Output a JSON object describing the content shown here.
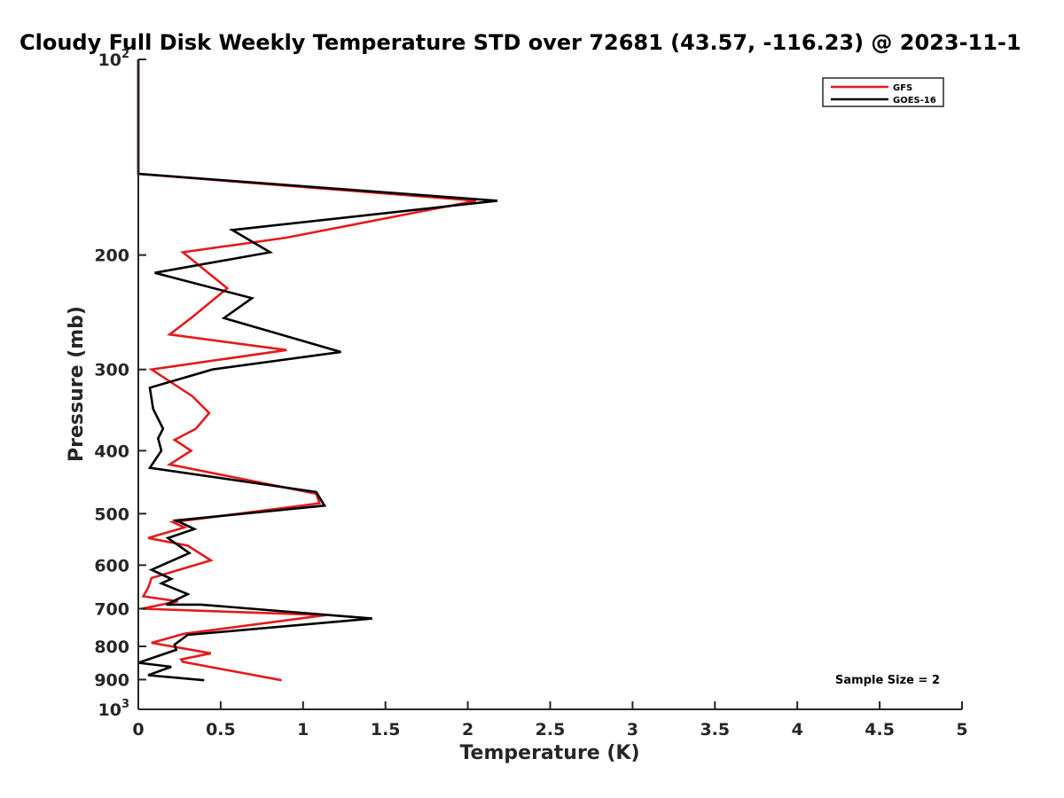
{
  "chart_data": {
    "type": "line",
    "title": "Cloudy Full Disk Weekly Temperature STD over 72681 (43.57, -116.23) @ 2023-11-1",
    "xlabel": "Temperature (K)",
    "ylabel": "Pressure (mb)",
    "xlim": [
      0,
      5
    ],
    "ylim": [
      100,
      1000
    ],
    "y_scale": "log",
    "y_reversed": true,
    "x_ticks": [
      "0",
      "0.5",
      "1",
      "1.5",
      "2",
      "2.5",
      "3",
      "3.5",
      "4",
      "4.5",
      "5"
    ],
    "y_ticks": [
      {
        "value": 100,
        "base": "10",
        "exp": "2"
      },
      {
        "value": 200,
        "label": "200"
      },
      {
        "value": 300,
        "label": "300"
      },
      {
        "value": 400,
        "label": "400"
      },
      {
        "value": 500,
        "label": "500"
      },
      {
        "value": 600,
        "label": "600"
      },
      {
        "value": 700,
        "label": "700"
      },
      {
        "value": 800,
        "label": "800"
      },
      {
        "value": 900,
        "label": "900"
      },
      {
        "value": 1000,
        "base": "10",
        "exp": "3"
      }
    ],
    "legend": "top-right",
    "grid": false,
    "annotation": "Sample Size = 2",
    "series": [
      {
        "name": "GFS",
        "color": "#e41a1c",
        "points": [
          [
            0.0,
            100
          ],
          [
            0.0,
            150
          ],
          [
            2.05,
            165
          ],
          [
            0.9,
            188
          ],
          [
            0.27,
            198
          ],
          [
            0.54,
            225
          ],
          [
            0.32,
            250
          ],
          [
            0.19,
            265
          ],
          [
            0.9,
            280
          ],
          [
            0.08,
            300
          ],
          [
            0.33,
            330
          ],
          [
            0.43,
            350
          ],
          [
            0.35,
            370
          ],
          [
            0.22,
            385
          ],
          [
            0.32,
            400
          ],
          [
            0.19,
            420
          ],
          [
            1.08,
            466
          ],
          [
            1.1,
            482
          ],
          [
            0.21,
            515
          ],
          [
            0.28,
            525
          ],
          [
            0.06,
            545
          ],
          [
            0.3,
            560
          ],
          [
            0.44,
            590
          ],
          [
            0.08,
            628
          ],
          [
            0.06,
            650
          ],
          [
            0.03,
            670
          ],
          [
            0.24,
            682
          ],
          [
            0.02,
            700
          ],
          [
            1.14,
            716
          ],
          [
            0.28,
            765
          ],
          [
            0.08,
            790
          ],
          [
            0.44,
            820
          ],
          [
            0.26,
            838
          ],
          [
            0.27,
            845
          ],
          [
            0.87,
            902
          ]
        ]
      },
      {
        "name": "GOES-16",
        "color": "#000000",
        "points": [
          [
            0.0,
            100
          ],
          [
            0.0,
            150
          ],
          [
            2.18,
            165
          ],
          [
            0.57,
            183
          ],
          [
            0.8,
            198
          ],
          [
            0.1,
            213
          ],
          [
            0.69,
            233
          ],
          [
            0.52,
            250
          ],
          [
            1.23,
            282
          ],
          [
            0.45,
            300
          ],
          [
            0.07,
            320
          ],
          [
            0.09,
            345
          ],
          [
            0.15,
            370
          ],
          [
            0.12,
            383
          ],
          [
            0.14,
            400
          ],
          [
            0.07,
            425
          ],
          [
            1.08,
            463
          ],
          [
            1.13,
            486
          ],
          [
            0.23,
            512
          ],
          [
            0.34,
            528
          ],
          [
            0.18,
            545
          ],
          [
            0.31,
            575
          ],
          [
            0.08,
            610
          ],
          [
            0.2,
            630
          ],
          [
            0.14,
            640
          ],
          [
            0.3,
            665
          ],
          [
            0.17,
            690
          ],
          [
            0.38,
            690
          ],
          [
            1.42,
            725
          ],
          [
            0.3,
            768
          ],
          [
            0.22,
            795
          ],
          [
            0.23,
            810
          ],
          [
            0.0,
            848
          ],
          [
            0.2,
            860
          ],
          [
            0.06,
            886
          ],
          [
            0.4,
            902
          ]
        ]
      }
    ]
  }
}
